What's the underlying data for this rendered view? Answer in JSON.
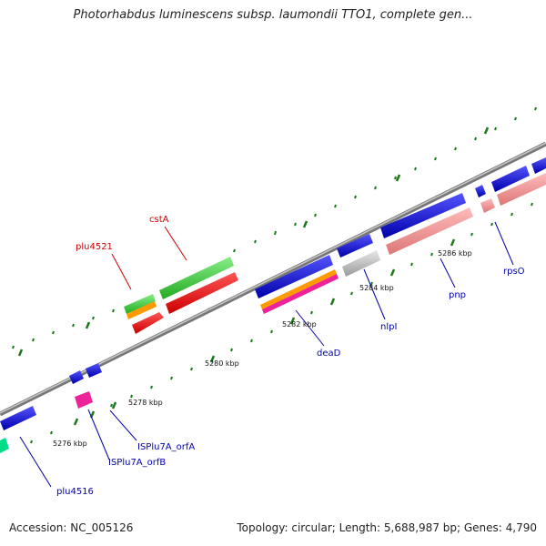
{
  "title": "Photorhabdus luminescens subsp. laumondii TTO1, complete gen...",
  "footer": {
    "accession": "Accession: NC_005126",
    "summary": "Topology: circular; Length: 5,688,987 bp; Genes: 4,790"
  },
  "scale_labels": [
    "5276 kbp",
    "5278 kbp",
    "5280 kbp",
    "5282 kbp",
    "5284 kbp",
    "5286 kbp"
  ],
  "gene_labels": {
    "forward": [
      "plu4521",
      "cstA"
    ],
    "reverse": [
      "plu4516",
      "ISPlu7A_orfB",
      "ISPlu7A_orfA",
      "deaD",
      "nlpI",
      "pnp",
      "rpsO"
    ]
  },
  "colors": {
    "forward_label": "#cc0000",
    "reverse_label": "#0000aa",
    "backbone": "#888888",
    "tick": "#1a7a1a",
    "cds_blue": "#0000dd",
    "cds_green": "#33cc33",
    "cds_red": "#ee0000",
    "cds_pink": "#ee8888",
    "cds_orange": "#ff9900",
    "cds_magenta": "#ee2299",
    "cds_grey": "#bbbbbb",
    "cds_teal": "#00dd88"
  }
}
